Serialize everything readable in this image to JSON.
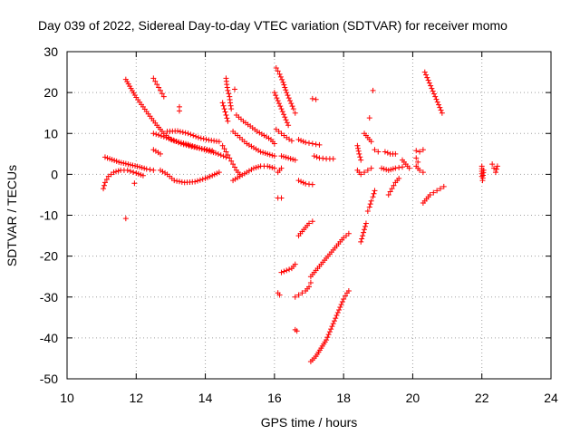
{
  "chart_data": {
    "type": "scatter",
    "title": "Day 039 of 2022, Sidereal Day-to-day VTEC variation (SDTVAR) for receiver momo",
    "xlabel": "GPS time / hours",
    "ylabel": "SDTVAR / TECUs",
    "xlim": [
      10,
      24
    ],
    "ylim": [
      -50,
      30
    ],
    "xticks": [
      "10",
      "12",
      "14",
      "16",
      "18",
      "20",
      "22",
      "24"
    ],
    "yticks": [
      "30",
      "20",
      "10",
      "0",
      "-10",
      "-20",
      "-30",
      "-40",
      "-50"
    ],
    "grid": true,
    "marker": "+",
    "color": "#ff0000",
    "series": [
      {
        "name": "s01",
        "points": [
          [
            11.1,
            4.2
          ],
          [
            11.3,
            3.6
          ],
          [
            11.5,
            3.0
          ],
          [
            11.7,
            2.6
          ],
          [
            11.9,
            2.2
          ],
          [
            12.1,
            1.8
          ],
          [
            12.3,
            1.3
          ],
          [
            12.5,
            1.0
          ]
        ]
      },
      {
        "name": "s02",
        "points": [
          [
            11.05,
            -3.5
          ],
          [
            11.1,
            -2.0
          ],
          [
            11.2,
            -0.5
          ],
          [
            11.35,
            0.5
          ],
          [
            11.55,
            1.0
          ],
          [
            11.75,
            1.0
          ],
          [
            12.0,
            0.3
          ],
          [
            12.2,
            -0.3
          ]
        ]
      },
      {
        "name": "s03",
        "points": [
          [
            11.7,
            23.2
          ],
          [
            11.85,
            21.0
          ],
          [
            12.0,
            18.8
          ],
          [
            12.2,
            16.5
          ],
          [
            12.4,
            14.2
          ],
          [
            12.6,
            12.0
          ],
          [
            12.8,
            10.0
          ],
          [
            13.0,
            8.6
          ],
          [
            13.3,
            7.5
          ],
          [
            13.6,
            6.8
          ],
          [
            13.9,
            6.3
          ],
          [
            14.2,
            5.8
          ]
        ]
      },
      {
        "name": "s04",
        "points": [
          [
            12.5,
            23.5
          ],
          [
            12.6,
            22.0
          ],
          [
            12.7,
            20.5
          ],
          [
            12.8,
            19.0
          ]
        ]
      },
      {
        "name": "s05",
        "points": [
          [
            12.5,
            10.0
          ],
          [
            12.8,
            9.2
          ],
          [
            13.1,
            8.2
          ],
          [
            13.5,
            7.3
          ],
          [
            13.9,
            6.2
          ],
          [
            14.3,
            5.2
          ],
          [
            14.6,
            4.2
          ]
        ]
      },
      {
        "name": "s06",
        "points": [
          [
            12.9,
            10.5
          ],
          [
            13.2,
            10.6
          ],
          [
            13.5,
            10.0
          ],
          [
            13.8,
            9.0
          ],
          [
            14.1,
            8.4
          ],
          [
            14.4,
            8.0
          ]
        ]
      },
      {
        "name": "s07",
        "points": [
          [
            12.5,
            6.0
          ],
          [
            12.7,
            5.0
          ]
        ]
      },
      {
        "name": "s08",
        "points": [
          [
            12.7,
            1.0
          ],
          [
            12.9,
            0.0
          ],
          [
            13.1,
            -1.5
          ],
          [
            13.4,
            -2.0
          ],
          [
            13.7,
            -1.8
          ],
          [
            14.0,
            -1.0
          ],
          [
            14.2,
            -0.3
          ],
          [
            14.4,
            0.5
          ]
        ]
      },
      {
        "name": "s09",
        "points": [
          [
            13.25,
            16.5
          ],
          [
            13.25,
            15.5
          ]
        ]
      },
      {
        "name": "s10",
        "points": [
          [
            11.7,
            -10.8
          ]
        ]
      },
      {
        "name": "s11",
        "points": [
          [
            11.95,
            -2.2
          ]
        ]
      },
      {
        "name": "s12",
        "points": [
          [
            14.5,
            17.5
          ],
          [
            14.55,
            16.0
          ],
          [
            14.6,
            14.5
          ],
          [
            14.65,
            13.0
          ]
        ]
      },
      {
        "name": "s13",
        "points": [
          [
            14.6,
            23.5
          ],
          [
            14.62,
            22.0
          ],
          [
            14.65,
            20.5
          ],
          [
            14.7,
            19.0
          ],
          [
            14.72,
            17.5
          ],
          [
            14.75,
            16.0
          ]
        ]
      },
      {
        "name": "s14",
        "points": [
          [
            14.85,
            20.8
          ]
        ]
      },
      {
        "name": "s15",
        "points": [
          [
            14.5,
            7.0
          ],
          [
            14.6,
            5.5
          ],
          [
            14.7,
            4.0
          ],
          [
            14.8,
            2.5
          ],
          [
            14.9,
            1.0
          ],
          [
            15.0,
            0.0
          ]
        ]
      },
      {
        "name": "s16",
        "points": [
          [
            14.8,
            10.5
          ],
          [
            15.0,
            9.0
          ],
          [
            15.2,
            7.5
          ],
          [
            15.4,
            6.5
          ],
          [
            15.6,
            5.5
          ],
          [
            15.8,
            5.0
          ],
          [
            16.0,
            4.5
          ]
        ]
      },
      {
        "name": "s17",
        "points": [
          [
            14.9,
            14.5
          ],
          [
            15.1,
            13.0
          ],
          [
            15.3,
            11.8
          ],
          [
            15.5,
            10.5
          ],
          [
            15.7,
            9.5
          ],
          [
            15.9,
            8.5
          ],
          [
            16.0,
            7.5
          ]
        ]
      },
      {
        "name": "s18",
        "points": [
          [
            14.8,
            -1.5
          ],
          [
            15.0,
            -0.5
          ],
          [
            15.2,
            0.5
          ],
          [
            15.4,
            1.5
          ],
          [
            15.6,
            2.0
          ],
          [
            15.8,
            2.0
          ],
          [
            16.0,
            1.5
          ]
        ]
      },
      {
        "name": "s19",
        "points": [
          [
            16.05,
            26.0
          ],
          [
            16.15,
            24.5
          ],
          [
            16.25,
            22.5
          ],
          [
            16.35,
            20.0
          ],
          [
            16.45,
            18.0
          ],
          [
            16.55,
            16.0
          ],
          [
            16.6,
            15.0
          ]
        ]
      },
      {
        "name": "s20",
        "points": [
          [
            16.0,
            20.0
          ],
          [
            16.1,
            18.0
          ],
          [
            16.2,
            16.0
          ],
          [
            16.3,
            14.0
          ],
          [
            16.4,
            12.0
          ]
        ]
      },
      {
        "name": "s21",
        "points": [
          [
            16.05,
            11.0
          ],
          [
            16.2,
            10.0
          ],
          [
            16.35,
            9.0
          ],
          [
            16.5,
            8.2
          ]
        ]
      },
      {
        "name": "s22",
        "points": [
          [
            16.2,
            4.5
          ],
          [
            16.4,
            4.0
          ],
          [
            16.6,
            3.5
          ]
        ]
      },
      {
        "name": "s23",
        "points": [
          [
            16.1,
            0.5
          ],
          [
            16.2,
            1.5
          ]
        ]
      },
      {
        "name": "s24",
        "points": [
          [
            16.1,
            -5.8
          ],
          [
            16.2,
            -5.8
          ]
        ]
      },
      {
        "name": "s25",
        "points": [
          [
            16.7,
            8.5
          ],
          [
            16.9,
            7.8
          ],
          [
            17.1,
            7.5
          ],
          [
            17.3,
            7.2
          ]
        ]
      },
      {
        "name": "s26",
        "points": [
          [
            16.7,
            -1.5
          ],
          [
            16.9,
            -2.3
          ],
          [
            17.1,
            -2.5
          ]
        ]
      },
      {
        "name": "s27",
        "points": [
          [
            17.1,
            18.5
          ],
          [
            17.2,
            18.3
          ]
        ]
      },
      {
        "name": "s28",
        "points": [
          [
            17.15,
            4.5
          ],
          [
            17.3,
            4.0
          ],
          [
            17.5,
            3.8
          ],
          [
            17.7,
            3.8
          ]
        ]
      },
      {
        "name": "s29",
        "points": [
          [
            16.7,
            -15.0
          ],
          [
            16.8,
            -14.0
          ],
          [
            16.9,
            -13.0
          ],
          [
            17.0,
            -12.0
          ],
          [
            17.1,
            -11.5
          ]
        ]
      },
      {
        "name": "s30",
        "points": [
          [
            16.2,
            -24.0
          ],
          [
            16.35,
            -23.5
          ],
          [
            16.5,
            -23.0
          ],
          [
            16.6,
            -22.0
          ]
        ]
      },
      {
        "name": "s31",
        "points": [
          [
            16.1,
            -29.0
          ],
          [
            16.15,
            -29.5
          ]
        ]
      },
      {
        "name": "s32",
        "points": [
          [
            16.6,
            -30.0
          ],
          [
            16.7,
            -29.5
          ],
          [
            16.8,
            -29.0
          ],
          [
            16.9,
            -28.5
          ],
          [
            17.0,
            -27.5
          ],
          [
            17.05,
            -26.5
          ]
        ]
      },
      {
        "name": "s33",
        "points": [
          [
            16.6,
            -38.0
          ],
          [
            16.65,
            -38.3
          ]
        ]
      },
      {
        "name": "s34",
        "points": [
          [
            17.05,
            -25.0
          ],
          [
            17.2,
            -23.5
          ],
          [
            17.4,
            -21.5
          ],
          [
            17.6,
            -19.5
          ],
          [
            17.8,
            -17.5
          ],
          [
            18.0,
            -15.5
          ],
          [
            18.15,
            -14.5
          ]
        ]
      },
      {
        "name": "s35",
        "points": [
          [
            17.05,
            -45.8
          ],
          [
            17.2,
            -44.5
          ],
          [
            17.35,
            -42.5
          ],
          [
            17.5,
            -40.5
          ],
          [
            17.6,
            -38.5
          ],
          [
            17.7,
            -36.5
          ],
          [
            17.8,
            -34.5
          ],
          [
            17.9,
            -32.5
          ],
          [
            18.0,
            -30.5
          ],
          [
            18.1,
            -29.0
          ],
          [
            18.15,
            -28.5
          ]
        ]
      },
      {
        "name": "s36",
        "points": [
          [
            18.4,
            7.0
          ],
          [
            18.45,
            5.0
          ],
          [
            18.5,
            3.5
          ]
        ]
      },
      {
        "name": "s37",
        "points": [
          [
            18.4,
            1.0
          ],
          [
            18.5,
            0.0
          ],
          [
            18.6,
            0.5
          ],
          [
            18.7,
            1.0
          ],
          [
            18.8,
            1.5
          ]
        ]
      },
      {
        "name": "s38",
        "points": [
          [
            18.6,
            10.0
          ],
          [
            18.7,
            9.0
          ],
          [
            18.8,
            8.0
          ]
        ]
      },
      {
        "name": "s39",
        "points": [
          [
            18.75,
            13.8
          ]
        ]
      },
      {
        "name": "s40",
        "points": [
          [
            18.85,
            20.5
          ]
        ]
      },
      {
        "name": "s41",
        "points": [
          [
            18.9,
            6.0
          ],
          [
            19.0,
            5.5
          ]
        ]
      },
      {
        "name": "s42",
        "points": [
          [
            18.5,
            -16.5
          ],
          [
            18.55,
            -15.0
          ],
          [
            18.6,
            -13.5
          ],
          [
            18.65,
            -12.0
          ]
        ]
      },
      {
        "name": "s43",
        "points": [
          [
            18.7,
            -9.0
          ],
          [
            18.75,
            -8.0
          ],
          [
            18.8,
            -6.5
          ],
          [
            18.85,
            -5.5
          ],
          [
            18.9,
            -4.0
          ]
        ]
      },
      {
        "name": "s44",
        "points": [
          [
            19.2,
            5.5
          ],
          [
            19.35,
            5.0
          ],
          [
            19.5,
            5.0
          ]
        ]
      },
      {
        "name": "s45",
        "points": [
          [
            19.1,
            1.5
          ],
          [
            19.3,
            1.0
          ],
          [
            19.5,
            1.5
          ],
          [
            19.7,
            1.8
          ]
        ]
      },
      {
        "name": "s46",
        "points": [
          [
            19.3,
            -5.0
          ],
          [
            19.4,
            -3.5
          ],
          [
            19.5,
            -2.0
          ],
          [
            19.6,
            -1.0
          ]
        ]
      },
      {
        "name": "s47",
        "points": [
          [
            19.7,
            3.5
          ],
          [
            19.8,
            2.5
          ],
          [
            19.9,
            1.5
          ]
        ]
      },
      {
        "name": "s48",
        "points": [
          [
            20.1,
            5.8
          ],
          [
            20.2,
            5.5
          ],
          [
            20.3,
            6.0
          ]
        ]
      },
      {
        "name": "s49",
        "points": [
          [
            20.1,
            2.0
          ],
          [
            20.2,
            1.0
          ],
          [
            20.3,
            0.5
          ]
        ]
      },
      {
        "name": "s50",
        "points": [
          [
            20.1,
            4.0
          ],
          [
            20.15,
            3.0
          ]
        ]
      },
      {
        "name": "s51",
        "points": [
          [
            20.35,
            25.0
          ],
          [
            20.45,
            23.0
          ],
          [
            20.55,
            21.0
          ],
          [
            20.65,
            19.0
          ],
          [
            20.75,
            17.0
          ],
          [
            20.85,
            15.0
          ]
        ]
      },
      {
        "name": "s52",
        "points": [
          [
            20.3,
            -7.0
          ],
          [
            20.4,
            -6.0
          ],
          [
            20.5,
            -5.0
          ],
          [
            20.6,
            -4.5
          ],
          [
            20.7,
            -4.0
          ],
          [
            20.8,
            -3.5
          ],
          [
            20.9,
            -3.0
          ]
        ]
      },
      {
        "name": "s53",
        "points": [
          [
            22.0,
            2.0
          ],
          [
            22.0,
            -0.5
          ],
          [
            22.02,
            -1.5
          ],
          [
            22.05,
            1.0
          ]
        ]
      },
      {
        "name": "s54",
        "points": [
          [
            22.3,
            2.5
          ],
          [
            22.35,
            1.5
          ],
          [
            22.4,
            0.5
          ],
          [
            22.45,
            2.0
          ]
        ]
      }
    ]
  }
}
